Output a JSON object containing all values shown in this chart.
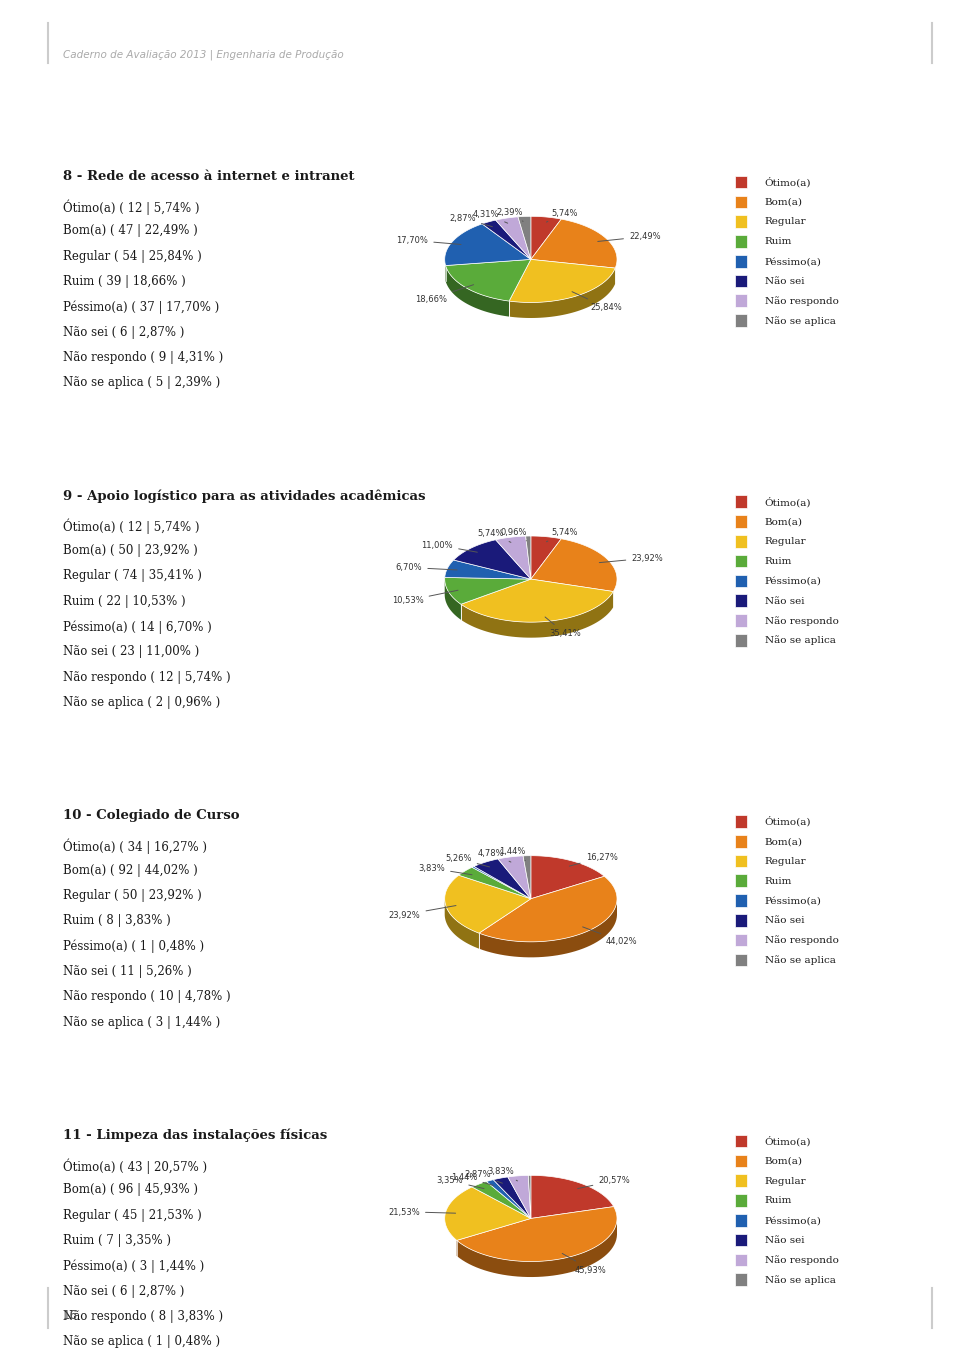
{
  "header": "Caderno de Avaliação 2013 | Engenharia de Produção",
  "page_number": "16",
  "background_color": "#ffffff",
  "charts": [
    {
      "title": "8 - Rede de acesso à internet e intranet",
      "labels": [
        "Ótimo(a)",
        "Bom(a)",
        "Regular",
        "Ruim",
        "Péssimo(a)",
        "Não sei",
        "Não respondo",
        "Não se aplica"
      ],
      "counts": [
        12,
        47,
        54,
        39,
        37,
        6,
        9,
        5
      ],
      "percentages": [
        5.74,
        22.49,
        25.84,
        18.66,
        17.7,
        2.87,
        4.31,
        2.39
      ],
      "text_items": [
        "Ótimo(a) ( 12 | 5,74% )",
        "Bom(a) ( 47 | 22,49% )",
        "Regular ( 54 | 25,84% )",
        "Ruim ( 39 | 18,66% )",
        "Péssimo(a) ( 37 | 17,70% )",
        "Não sei ( 6 | 2,87% )",
        "Não respondo ( 9 | 4,31% )",
        "Não se aplica ( 5 | 2,39% )"
      ]
    },
    {
      "title": "9 - Apoio logístico para as atividades acadêmicas",
      "labels": [
        "Ótimo(a)",
        "Bom(a)",
        "Regular",
        "Ruim",
        "Péssimo(a)",
        "Não sei",
        "Não respondo",
        "Não se aplica"
      ],
      "counts": [
        12,
        50,
        74,
        22,
        14,
        23,
        12,
        2
      ],
      "percentages": [
        5.74,
        23.92,
        35.41,
        10.53,
        6.7,
        11.0,
        5.74,
        0.96
      ],
      "text_items": [
        "Ótimo(a) ( 12 | 5,74% )",
        "Bom(a) ( 50 | 23,92% )",
        "Regular ( 74 | 35,41% )",
        "Ruim ( 22 | 10,53% )",
        "Péssimo(a) ( 14 | 6,70% )",
        "Não sei ( 23 | 11,00% )",
        "Não respondo ( 12 | 5,74% )",
        "Não se aplica ( 2 | 0,96% )"
      ]
    },
    {
      "title": "10 - Colegiado de Curso",
      "labels": [
        "Ótimo(a)",
        "Bom(a)",
        "Regular",
        "Ruim",
        "Péssimo(a)",
        "Não sei",
        "Não respondo",
        "Não se aplica"
      ],
      "counts": [
        34,
        92,
        50,
        8,
        1,
        11,
        10,
        3
      ],
      "percentages": [
        16.27,
        44.02,
        23.92,
        3.83,
        0.48,
        5.26,
        4.78,
        1.44
      ],
      "text_items": [
        "Ótimo(a) ( 34 | 16,27% )",
        "Bom(a) ( 92 | 44,02% )",
        "Regular ( 50 | 23,92% )",
        "Ruim ( 8 | 3,83% )",
        "Péssimo(a) ( 1 | 0,48% )",
        "Não sei ( 11 | 5,26% )",
        "Não respondo ( 10 | 4,78% )",
        "Não se aplica ( 3 | 1,44% )"
      ]
    },
    {
      "title": "11 - Limpeza das instalações físicas",
      "labels": [
        "Ótimo(a)",
        "Bom(a)",
        "Regular",
        "Ruim",
        "Péssimo(a)",
        "Não sei",
        "Não respondo",
        "Não se aplica"
      ],
      "counts": [
        43,
        96,
        45,
        7,
        3,
        6,
        8,
        1
      ],
      "percentages": [
        20.57,
        45.93,
        21.53,
        3.35,
        1.44,
        2.87,
        3.83,
        0.48
      ],
      "text_items": [
        "Ótimo(a) ( 43 | 20,57% )",
        "Bom(a) ( 96 | 45,93% )",
        "Regular ( 45 | 21,53% )",
        "Ruim ( 7 | 3,35% )",
        "Péssimo(a) ( 3 | 1,44% )",
        "Não sei ( 6 | 2,87% )",
        "Não respondo ( 8 | 3,83% )",
        "Não se aplica ( 1 | 0,48% )"
      ]
    }
  ],
  "colors": [
    "#c0392b",
    "#e8821a",
    "#f0c020",
    "#5aab3a",
    "#2060b0",
    "#1a1a7a",
    "#c0a8d8",
    "#808080"
  ],
  "chart_bg": "#e0e0e0",
  "label_fontsize": 8.5,
  "title_fontsize": 9.5,
  "legend_fontsize": 7.5
}
